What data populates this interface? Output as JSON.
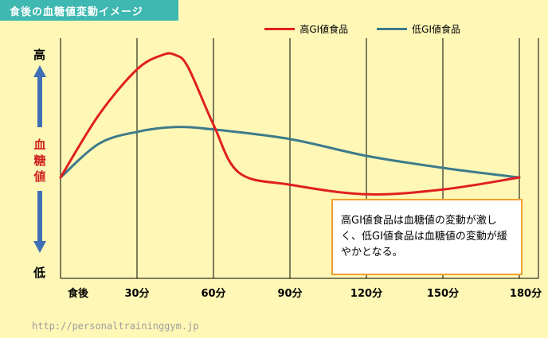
{
  "header": {
    "title": "食後の血糖値変動イメージ"
  },
  "annotation": {
    "text": "高GI値食品は血糖値の変動が激しく、低GI値食品は血糖値の変動が緩やかとなる。"
  },
  "footer": {
    "website": "http://personaltraininggym.jp"
  },
  "colors": {
    "high_gi": "#e02020",
    "low_gi": "#3d7a8a",
    "accent": "#3eb8b0",
    "arrow": "#3f6fb5"
  },
  "chart_data": {
    "type": "line",
    "title": "食後の血糖値変動イメージ",
    "xlabel": "",
    "ylabel_top": "高",
    "ylabel_mid": "血糖値",
    "ylabel_bottom": "低",
    "categories": [
      "食後",
      "30分",
      "60分",
      "90分",
      "120分",
      "150分",
      "180分"
    ],
    "ylim": [
      0,
      100
    ],
    "grid": "vertical",
    "legend": "top",
    "series": [
      {
        "name": "高GI値食品",
        "color": "#e02020",
        "x": [
          0,
          15,
          30,
          40,
          45,
          50,
          60,
          70,
          90,
          120,
          150,
          180
        ],
        "y": [
          42,
          68,
          87,
          93,
          93,
          88,
          64,
          44,
          39,
          35,
          37,
          42
        ]
      },
      {
        "name": "低GI値食品",
        "color": "#3d7a8a",
        "x": [
          0,
          15,
          30,
          45,
          60,
          90,
          120,
          150,
          180
        ],
        "y": [
          42,
          56,
          61,
          63,
          62,
          58,
          51,
          46,
          42
        ]
      }
    ]
  }
}
